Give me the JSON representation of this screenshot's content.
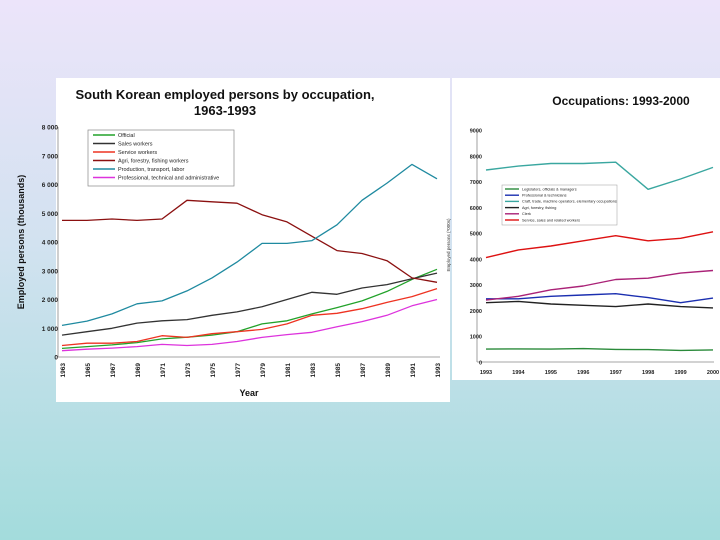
{
  "chart_data": [
    {
      "type": "line",
      "title": "South Korean employed persons by occupation, 1963-1993",
      "xlabel": "Year",
      "ylabel": "Employed persons (thousands)",
      "ylim": [
        0,
        8000
      ],
      "yticks": [
        "0",
        "1 000",
        "2 000",
        "3 000",
        "4 000",
        "5 000",
        "6 000",
        "7 000",
        "8 000"
      ],
      "x": [
        1963,
        1965,
        1967,
        1969,
        1971,
        1973,
        1975,
        1977,
        1979,
        1981,
        1983,
        1985,
        1987,
        1989,
        1991,
        1993
      ],
      "xticklabels": [
        "1963",
        "1965",
        "1967",
        "1969",
        "1971",
        "1973",
        "1975",
        "1977",
        "1979",
        "1981",
        "1983",
        "1985",
        "1987",
        "1989",
        "1991",
        "1993"
      ],
      "legend_position": "top-center",
      "series": [
        {
          "name": "Official",
          "color": "#22a22a",
          "values": [
            300,
            360,
            420,
            500,
            630,
            690,
            760,
            880,
            1150,
            1260,
            1500,
            1720,
            1950,
            2280,
            2700,
            3050
          ]
        },
        {
          "name": "Sales workers",
          "color": "#333333",
          "values": [
            760,
            880,
            1000,
            1180,
            1260,
            1300,
            1450,
            1570,
            1750,
            2000,
            2250,
            2180,
            2400,
            2520,
            2720,
            2920
          ]
        },
        {
          "name": "Service workers",
          "color": "#ee3322",
          "values": [
            400,
            480,
            480,
            540,
            740,
            680,
            810,
            880,
            960,
            1150,
            1450,
            1520,
            1680,
            1900,
            2100,
            2380
          ]
        },
        {
          "name": "Agri, forestry, fishing workers",
          "color": "#8b1010",
          "values": [
            4750,
            4750,
            4800,
            4750,
            4800,
            5450,
            5400,
            5350,
            4950,
            4700,
            4200,
            3700,
            3600,
            3350,
            2750,
            2600
          ]
        },
        {
          "name": "Production, transport, labor",
          "color": "#1f8aa0",
          "values": [
            1100,
            1250,
            1500,
            1850,
            1950,
            2300,
            2750,
            3300,
            3950,
            3950,
            4050,
            4600,
            5450,
            6050,
            6700,
            6200
          ]
        },
        {
          "name": "Professional, technical and administrative",
          "color": "#dd33dd",
          "values": [
            220,
            270,
            310,
            360,
            440,
            400,
            440,
            540,
            680,
            780,
            860,
            1050,
            1230,
            1450,
            1780,
            2000
          ]
        }
      ]
    },
    {
      "type": "line",
      "title": "Occupations: 1993-2000",
      "xlabel": "",
      "ylabel": "Employed persons (*000s)",
      "ylim": [
        0,
        9000
      ],
      "yticks": [
        "0",
        "1000",
        "2000",
        "3000",
        "4000",
        "5000",
        "6000",
        "7000",
        "8000",
        "9000"
      ],
      "x": [
        1993,
        1994,
        1995,
        1996,
        1997,
        1998,
        1999,
        2000
      ],
      "xticklabels": [
        "1993",
        "1994",
        "1995",
        "1996",
        "1997",
        "1998",
        "1999",
        "2000"
      ],
      "legend_position": "top-right",
      "series": [
        {
          "name": "Legislators, officials & managers",
          "color": "#2a8a3a",
          "values": [
            500,
            510,
            500,
            520,
            490,
            480,
            450,
            470
          ]
        },
        {
          "name": "Professional & technicians",
          "color": "#1b2fb0",
          "values": [
            2450,
            2450,
            2550,
            2600,
            2650,
            2500,
            2300,
            2480
          ]
        },
        {
          "name": "Craft, trade, machine operators, elementary occupations",
          "color": "#3aa7a0",
          "values": [
            7450,
            7600,
            7700,
            7700,
            7750,
            6700,
            7100,
            7550
          ]
        },
        {
          "name": "Agri, forestry, fishing",
          "color": "#222222",
          "values": [
            2300,
            2350,
            2250,
            2200,
            2150,
            2250,
            2150,
            2100
          ]
        },
        {
          "name": "Clerk",
          "color": "#aa2277",
          "values": [
            2400,
            2550,
            2800,
            2950,
            3200,
            3250,
            3450,
            3550
          ]
        },
        {
          "name": "Service, sales and related workers",
          "color": "#dd1111",
          "values": [
            4050,
            4350,
            4500,
            4700,
            4900,
            4700,
            4800,
            5050
          ]
        }
      ]
    }
  ]
}
